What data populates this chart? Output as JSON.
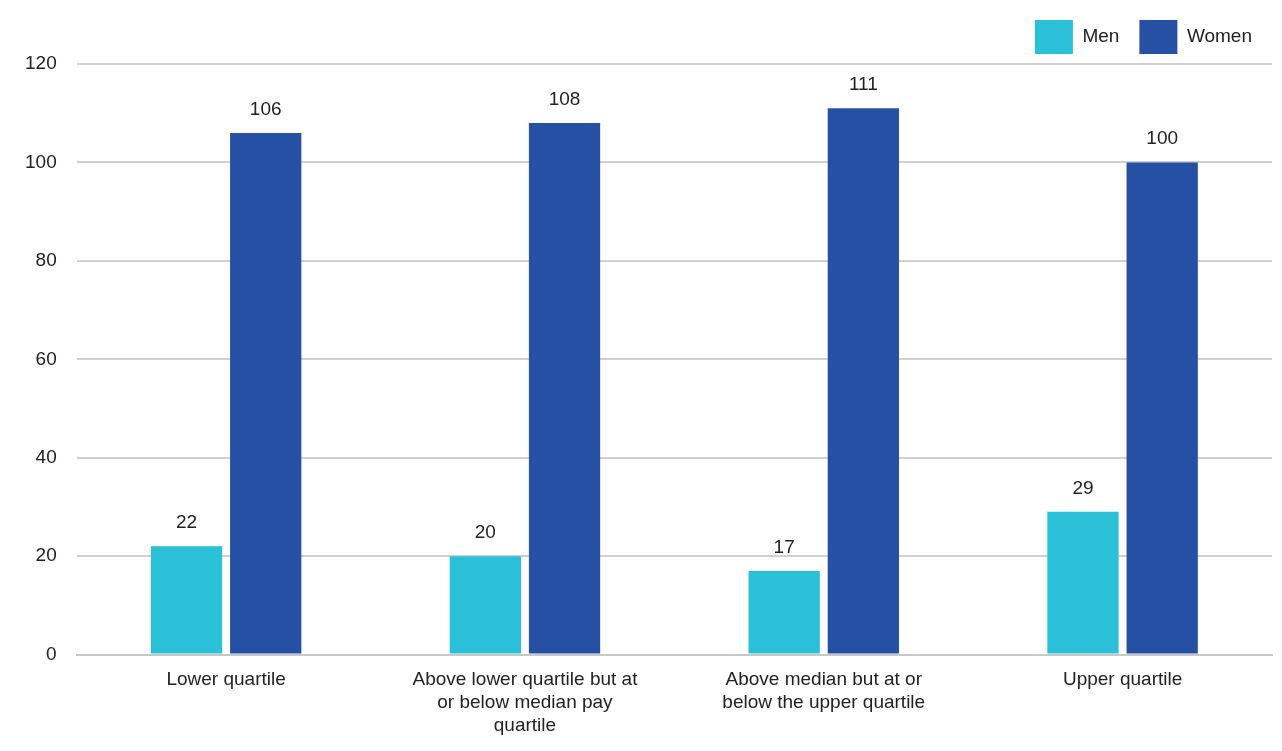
{
  "chart_data": {
    "type": "bar",
    "categories": [
      "Lower quartile",
      "Above lower quartile but at or below median pay quartile",
      "Above median but at or below the upper quartile",
      "Upper quartile"
    ],
    "series": [
      {
        "name": "Men",
        "color": "#29c0d8",
        "values": [
          22,
          20,
          17,
          29
        ]
      },
      {
        "name": "Women",
        "color": "#2550a4",
        "values": [
          106,
          108,
          111,
          100
        ]
      }
    ],
    "ylim": [
      0,
      120
    ],
    "yticks": [
      0,
      20,
      40,
      60,
      80,
      100,
      120
    ],
    "grid": "y",
    "legend": "top right",
    "data_labels": true
  }
}
